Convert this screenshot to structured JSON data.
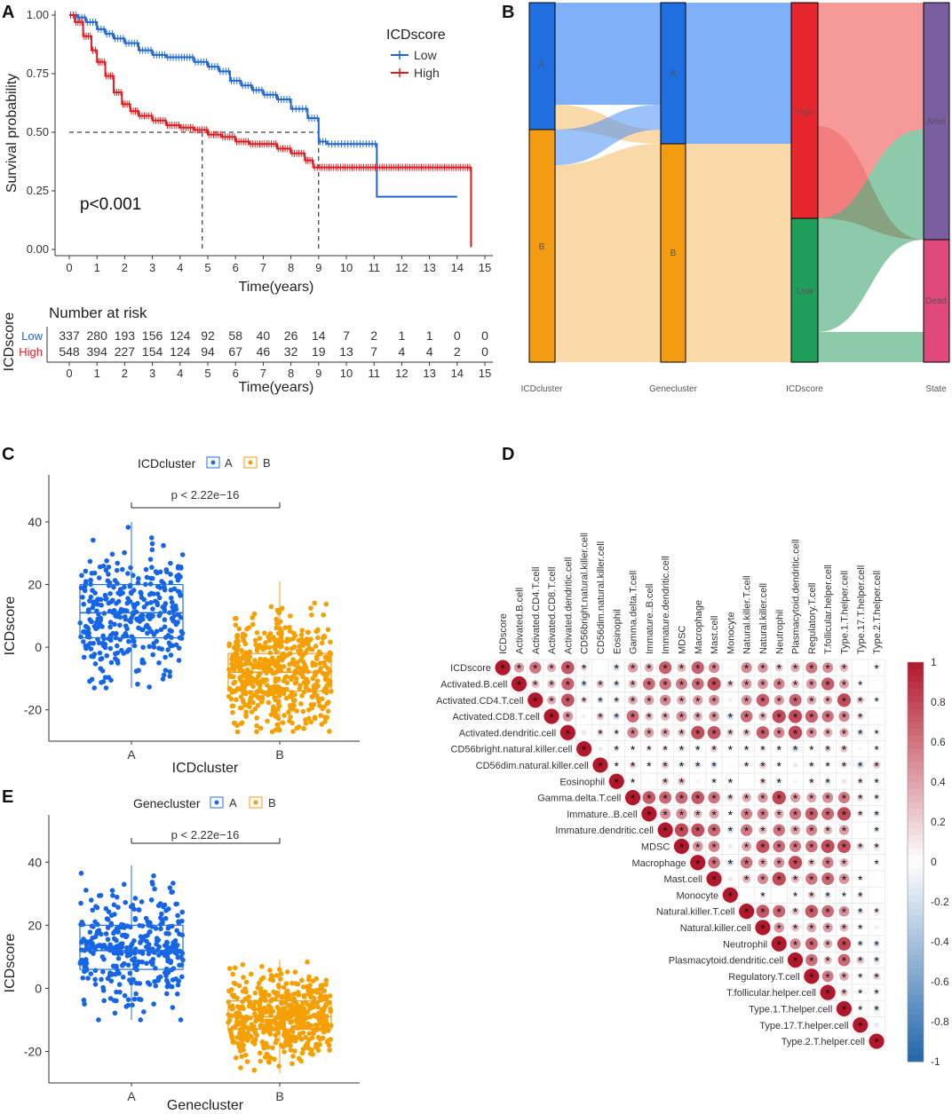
{
  "colors": {
    "low": "#1f67d4",
    "high": "#e41a1c",
    "clusterA": "#1f6fe0",
    "clusterB": "#f39c12",
    "dotA": "#1565e6",
    "dotB": "#f5a000",
    "high_bar": "#e8262e",
    "low_bar": "#1f9e5a",
    "alive": "#7a5fa0",
    "dead": "#e0497b"
  },
  "panel_labels": {
    "A": "A",
    "B": "B",
    "C": "C",
    "D": "D",
    "E": "E"
  },
  "km": {
    "legend_title": "ICDscore",
    "legend": [
      "Low",
      "High"
    ],
    "ylabel": "Survival probability",
    "xlabel": "Time(years)",
    "pvalue": "p<0.001",
    "x_ticks": [
      "0",
      "1",
      "2",
      "3",
      "4",
      "5",
      "6",
      "7",
      "8",
      "9",
      "10",
      "11",
      "12",
      "13",
      "14",
      "15"
    ],
    "y_ticks": [
      "0.00",
      "0.25",
      "0.50",
      "0.75",
      "1.00"
    ],
    "median_high": 4.8,
    "median_low": 9.0,
    "curve_low": [
      [
        0,
        1
      ],
      [
        0.3,
        0.99
      ],
      [
        0.6,
        0.97
      ],
      [
        1,
        0.94
      ],
      [
        1.3,
        0.92
      ],
      [
        1.6,
        0.9
      ],
      [
        2,
        0.88
      ],
      [
        2.5,
        0.85
      ],
      [
        3,
        0.83
      ],
      [
        3.5,
        0.82
      ],
      [
        4,
        0.82
      ],
      [
        4.5,
        0.8
      ],
      [
        5,
        0.78
      ],
      [
        5.4,
        0.76
      ],
      [
        5.8,
        0.72
      ],
      [
        6.2,
        0.7
      ],
      [
        6.6,
        0.68
      ],
      [
        7,
        0.66
      ],
      [
        7.5,
        0.64
      ],
      [
        8,
        0.6
      ],
      [
        8.6,
        0.56
      ],
      [
        9,
        0.46
      ],
      [
        9.3,
        0.45
      ],
      [
        10,
        0.45
      ],
      [
        11.1,
        0.45
      ],
      [
        11.1,
        0.225
      ],
      [
        14,
        0.225
      ]
    ],
    "curve_high": [
      [
        0,
        1
      ],
      [
        0.2,
        0.97
      ],
      [
        0.5,
        0.91
      ],
      [
        0.8,
        0.85
      ],
      [
        1,
        0.8
      ],
      [
        1.3,
        0.74
      ],
      [
        1.6,
        0.67
      ],
      [
        1.9,
        0.62
      ],
      [
        2.2,
        0.59
      ],
      [
        2.5,
        0.57
      ],
      [
        3,
        0.55
      ],
      [
        3.5,
        0.53
      ],
      [
        4,
        0.52
      ],
      [
        4.5,
        0.51
      ],
      [
        5,
        0.49
      ],
      [
        5.5,
        0.48
      ],
      [
        6,
        0.46
      ],
      [
        6.5,
        0.45
      ],
      [
        7,
        0.45
      ],
      [
        7.5,
        0.43
      ],
      [
        8,
        0.41
      ],
      [
        8.5,
        0.38
      ],
      [
        8.8,
        0.35
      ],
      [
        9,
        0.35
      ],
      [
        10,
        0.35
      ],
      [
        12,
        0.35
      ],
      [
        13,
        0.35
      ],
      [
        14,
        0.35
      ],
      [
        14.5,
        0.35
      ],
      [
        14.5,
        0.01
      ]
    ]
  },
  "risk": {
    "title": "Number at risk",
    "ylabel": "ICDscore",
    "xlabel": "Time(years)",
    "rows": [
      {
        "name": "Low",
        "values": [
          "337",
          "280",
          "193",
          "156",
          "124",
          "92",
          "58",
          "40",
          "26",
          "14",
          "7",
          "2",
          "1",
          "1",
          "0",
          "0"
        ]
      },
      {
        "name": "High",
        "values": [
          "548",
          "394",
          "227",
          "154",
          "124",
          "94",
          "67",
          "46",
          "32",
          "19",
          "13",
          "7",
          "4",
          "4",
          "2",
          "0"
        ]
      }
    ],
    "x_ticks": [
      "0",
      "1",
      "2",
      "3",
      "4",
      "5",
      "6",
      "7",
      "8",
      "9",
      "10",
      "11",
      "12",
      "13",
      "14",
      "15"
    ]
  },
  "sankey": {
    "axes": [
      "ICDcluster",
      "Genecluster",
      "ICDscore",
      "State"
    ],
    "col1": [
      "A",
      "B"
    ],
    "col2": [
      "A",
      "B"
    ],
    "col3": [
      "High",
      "Low"
    ],
    "col4": [
      "Alive",
      "Dead"
    ]
  },
  "box_c": {
    "legend_title": "ICDcluster",
    "legend": [
      "A",
      "B"
    ],
    "pvalue": "p < 2.22e−16",
    "ylabel": "ICDscore",
    "xlabel": "ICDcluster",
    "categories": [
      "A",
      "B"
    ],
    "y_ticks": [
      "-20",
      "0",
      "20",
      "40"
    ],
    "stats": [
      {
        "q1": 3,
        "median": 11,
        "q3": 20,
        "lo": -13,
        "hi": 40
      },
      {
        "q1": -14,
        "median": -8,
        "q3": -2,
        "lo": -27,
        "hi": 21
      }
    ]
  },
  "box_e": {
    "legend_title": "Genecluster",
    "legend": [
      "A",
      "B"
    ],
    "pvalue": "p < 2.22e−16",
    "ylabel": "ICDscore",
    "xlabel": "Genecluster",
    "categories": [
      "A",
      "B"
    ],
    "y_ticks": [
      "-20",
      "0",
      "20",
      "40"
    ],
    "stats": [
      {
        "q1": 6,
        "median": 12,
        "q3": 20,
        "lo": -10,
        "hi": 39
      },
      {
        "q1": -13,
        "median": -9,
        "q3": -4,
        "lo": -27,
        "hi": 9
      }
    ]
  },
  "corr": {
    "labels": [
      "ICDscore",
      "Activated.B.cell",
      "Activated.CD4.T.cell",
      "Activated.CD8.T.cell",
      "Activated.dendritic.cell",
      "CD56bright.natural.killer.cell",
      "CD56dim.natural.killer.cell",
      "Eosinophil",
      "Gamma.delta.T.cell",
      "Immature..B.cell",
      "Immature.dendritic.cell",
      "MDSC",
      "Macrophage",
      "Mast.cell",
      "Monocyte",
      "Natural.killer.T.cell",
      "Natural.killer.cell",
      "Neutrophil",
      "Plasmacytoid.dendritic.cell",
      "Regulatory.T.cell",
      "T.follicular.helper.cell",
      "Type.1.T.helper.cell",
      "Type.17.T.helper.cell",
      "Type.2.T.helper.cell"
    ],
    "colorbar_ticks": [
      "1",
      "0.8",
      "0.6",
      "0.4",
      "0.2",
      "0",
      "-0.2",
      "-0.4",
      "-0.6",
      "-0.8",
      "-1"
    ],
    "star": "*"
  }
}
